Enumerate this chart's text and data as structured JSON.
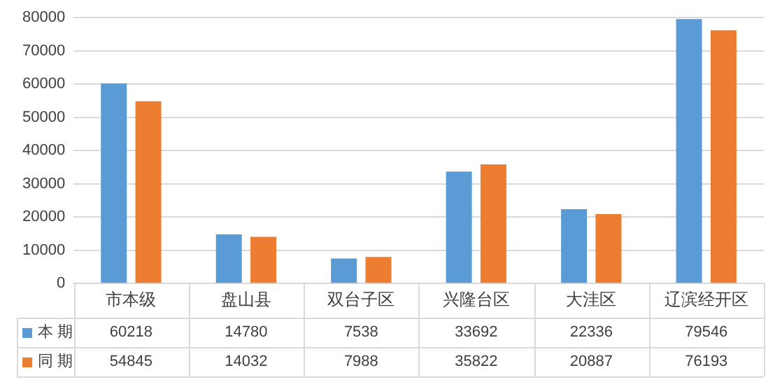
{
  "chart_data": {
    "type": "bar",
    "categories": [
      "市本级",
      "盘山县",
      "双台子区",
      "兴隆台区",
      "大洼区",
      "辽滨经开区"
    ],
    "series": [
      {
        "name": "本 期",
        "color": "#5b9bd5",
        "values": [
          60218,
          14780,
          7538,
          33692,
          22336,
          79546
        ]
      },
      {
        "name": "同 期",
        "color": "#ed7d31",
        "values": [
          54845,
          14032,
          7988,
          35822,
          20887,
          76193
        ]
      }
    ],
    "ylim": [
      0,
      80000
    ],
    "yticks": [
      0,
      10000,
      20000,
      30000,
      40000,
      50000,
      60000,
      70000,
      80000
    ],
    "grid": "y",
    "legend": "bottom",
    "data_labels": true
  }
}
